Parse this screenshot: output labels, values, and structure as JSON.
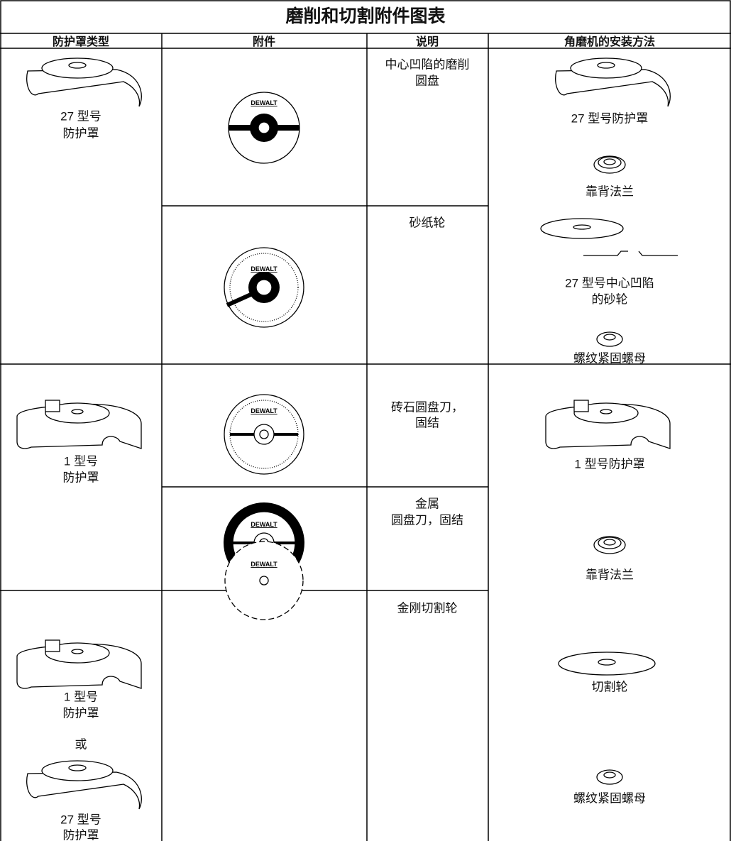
{
  "table": {
    "title": "磨削和切割附件图表",
    "headers": [
      "防护罩类型",
      "附件",
      "说明",
      "角磨机的安装方法"
    ],
    "logo": "DEWALT",
    "guards": [
      [
        "27 型号",
        "防护罩"
      ],
      [
        "1 型号",
        "防护罩"
      ],
      [
        "1 型号",
        "防护罩",
        "或",
        "27 型号",
        "防护罩"
      ]
    ],
    "descriptions": [
      [
        "中心凹陷的磨削",
        "圆盘"
      ],
      [
        "砂纸轮"
      ],
      [
        "砖石圆盘刀，",
        "固结"
      ],
      [
        "金属",
        "圆盘刀，固结"
      ],
      [
        "金刚切割轮"
      ]
    ],
    "mounting": [
      [
        "27 型号防护罩",
        "靠背法兰",
        "27 型号中心凹陷",
        "的砂轮",
        "螺纹紧固螺母"
      ],
      [
        "1 型号防护罩",
        "靠背法兰",
        "切割轮",
        "螺纹紧固螺母"
      ]
    ]
  }
}
